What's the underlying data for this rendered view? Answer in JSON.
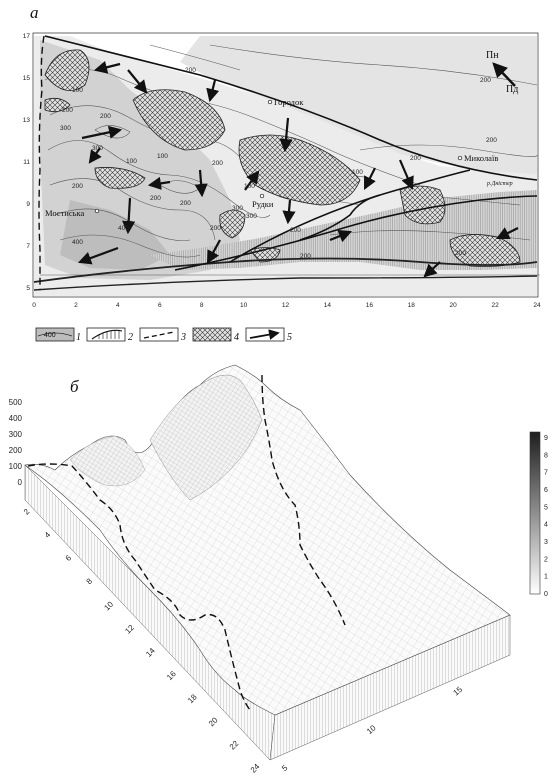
{
  "panel_a": {
    "label": "а",
    "y_ticks": [
      "17",
      "15",
      "13",
      "11",
      "9",
      "7",
      "5"
    ],
    "x_ticks": [
      "0",
      "2",
      "4",
      "6",
      "8",
      "10",
      "12",
      "14",
      "16",
      "18",
      "20",
      "22",
      "24"
    ],
    "contour_labels": [
      "200",
      "200",
      "200",
      "100",
      "200",
      "300",
      "100",
      "200",
      "400",
      "300",
      "100",
      "200",
      "300",
      "200",
      "100",
      "200",
      "200",
      "200",
      "400",
      "200",
      "300",
      "100",
      "200",
      "200",
      "200"
    ],
    "places": {
      "gorodok": "Городок",
      "mykolaiv": "Миколаїв",
      "mostyska": "Мостиська",
      "rudky": "Рудки"
    },
    "river": "р.Дністер",
    "compass": {
      "north": "Пн",
      "south": "Пд"
    },
    "legend": [
      {
        "num": "1",
        "value": "400",
        "icon": "contour-shaded-swatch"
      },
      {
        "num": "2",
        "icon": "escarpment-hatch-swatch"
      },
      {
        "num": "3",
        "icon": "dashed-boundary-swatch"
      },
      {
        "num": "4",
        "icon": "crosshatch-area-swatch"
      },
      {
        "num": "5",
        "icon": "flow-arrow-swatch"
      }
    ]
  },
  "panel_b": {
    "label": "б",
    "z_ticks": [
      "500",
      "400",
      "300",
      "200",
      "100",
      "0"
    ],
    "y_ticks": [
      "2",
      "4",
      "6",
      "8",
      "10",
      "12",
      "14",
      "16",
      "18",
      "20",
      "22",
      "24"
    ],
    "x_ticks": [
      "5",
      "10",
      "15"
    ],
    "colorbar_ticks": [
      "9",
      "8",
      "7",
      "6",
      "5",
      "4",
      "3",
      "2",
      "1",
      "0"
    ]
  }
}
